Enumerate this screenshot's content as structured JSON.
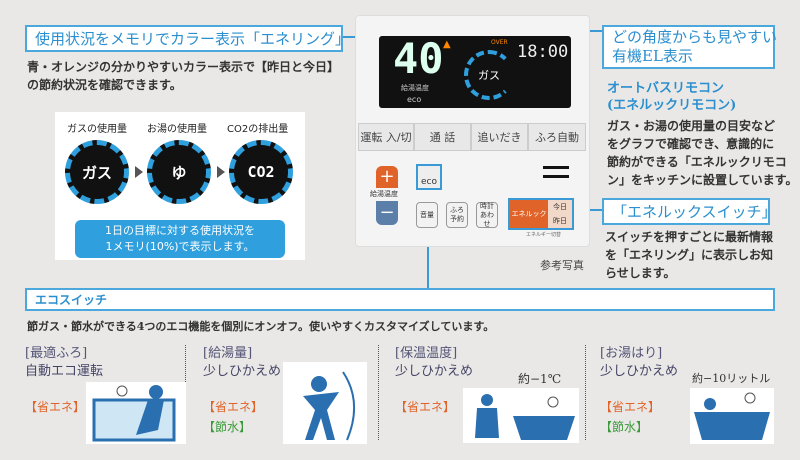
{
  "callouts": {
    "enering": "使用状況をメモリでカラー表示「エネリング」",
    "el_display": [
      "どの角度からも見やすい",
      "有機EL表示"
    ],
    "enelook_switch": "「エネルックスイッチ」",
    "eco_switch": "エコスイッチ"
  },
  "enering_desc": [
    "青・オレンジの分かりやすいカラー表示で【昨日と今日】",
    "の節約状況を確認できます。"
  ],
  "infographic": {
    "labels": [
      "ガスの使用量",
      "お湯の使用量",
      "CO2の排出量"
    ],
    "rings": [
      "ガス",
      "ゆ",
      "CO2"
    ],
    "bubble": [
      "1日の目標に対する使用状況を",
      "1メモリ(10%)で表示します。"
    ]
  },
  "remote": {
    "temp": "40",
    "temp_label": "給湯温度",
    "eco_mark": "eco",
    "ring_text": "ガス",
    "over": "OVER",
    "time": "18:00",
    "buttons": [
      "運転 入/切",
      "通 話",
      "追いだき",
      "ふろ自動"
    ],
    "plus": "+",
    "minus": "−",
    "temp_btn_label": "給湯温度",
    "eco_btn": "eco",
    "small_buttons": [
      [
        "音量"
      ],
      [
        "ふろ",
        "予約"
      ],
      [
        "時計",
        "あわせ"
      ]
    ],
    "enelook": "エネルック",
    "today": "今日",
    "yesterday": "昨日",
    "enelook_sub": "エネルギー切替",
    "caption": "参考写真",
    "accent": "#e0642a"
  },
  "product": {
    "title": "オートバスリモコン",
    "subtitle": "(エネルックリモコン)",
    "desc": [
      "ガス・お湯の使用量の目安など",
      "をグラフで確認でき、意識的に",
      "節約ができる「エネルックリモコ",
      "ン」をキッチンに設置しています。"
    ]
  },
  "switch_desc": [
    "スイッチを押すごとに最新情報",
    "を「エネリング」に表示しお知",
    "らせします。"
  ],
  "eco_desc": "節ガス・節水ができる4つのエコ機能を個別にオンオフ。使いやすくカスタマイズしています。",
  "eco_items": [
    {
      "bracket": "[最適ふろ]",
      "title": "自動エコ運転",
      "tags": [
        "【省エネ】"
      ],
      "note": ""
    },
    {
      "bracket": "[給湯量]",
      "title": "少しひかえめ",
      "tags": [
        "【省エネ】",
        "【節水】"
      ],
      "note": ""
    },
    {
      "bracket": "[保温温度]",
      "title": "少しひかえめ",
      "tags": [
        "【省エネ】"
      ],
      "note": "約−1℃"
    },
    {
      "bracket": "[お湯はり]",
      "title": "少しひかえめ",
      "tags": [
        "【省エネ】",
        "【節水】"
      ],
      "note": "約−10リットル"
    }
  ],
  "colors": {
    "accent_blue": "#3a9ad6",
    "energy": "#e0642a",
    "water": "#3a9a3a",
    "background": "#e9e8e6"
  }
}
